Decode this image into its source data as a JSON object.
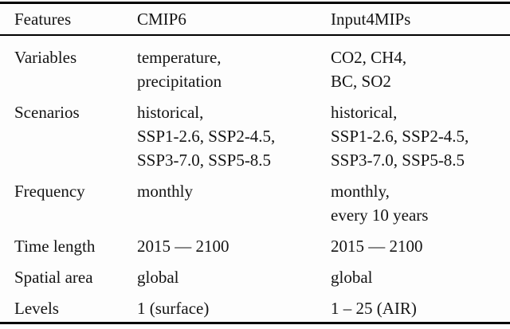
{
  "table": {
    "columns": [
      "Features",
      "CMIP6",
      "Input4MIPs"
    ],
    "rows": [
      {
        "feature": "Variables",
        "cmip6": [
          "temperature,",
          "precipitation"
        ],
        "input4mips": [
          "CO2, CH4,",
          "BC, SO2"
        ]
      },
      {
        "feature": "Scenarios",
        "cmip6": [
          "historical,",
          "SSP1-2.6, SSP2-4.5,",
          "SSP3-7.0, SSP5-8.5"
        ],
        "input4mips": [
          "historical,",
          "SSP1-2.6, SSP2-4.5,",
          "SSP3-7.0, SSP5-8.5"
        ]
      },
      {
        "feature": "Frequency",
        "cmip6": [
          "monthly"
        ],
        "input4mips": [
          "monthly,",
          "every 10 years"
        ]
      },
      {
        "feature": "Time length",
        "cmip6": [
          "2015 — 2100"
        ],
        "input4mips": [
          "2015 — 2100"
        ]
      },
      {
        "feature": "Spatial area",
        "cmip6": [
          "global"
        ],
        "input4mips": [
          "global"
        ]
      },
      {
        "feature": "Levels",
        "cmip6": [
          "1 (surface)"
        ],
        "input4mips": [
          "1 – 25 (AIR)"
        ]
      }
    ],
    "colors": {
      "text": "#141414",
      "rule": "#000000",
      "background": "#fdfdfd"
    }
  }
}
